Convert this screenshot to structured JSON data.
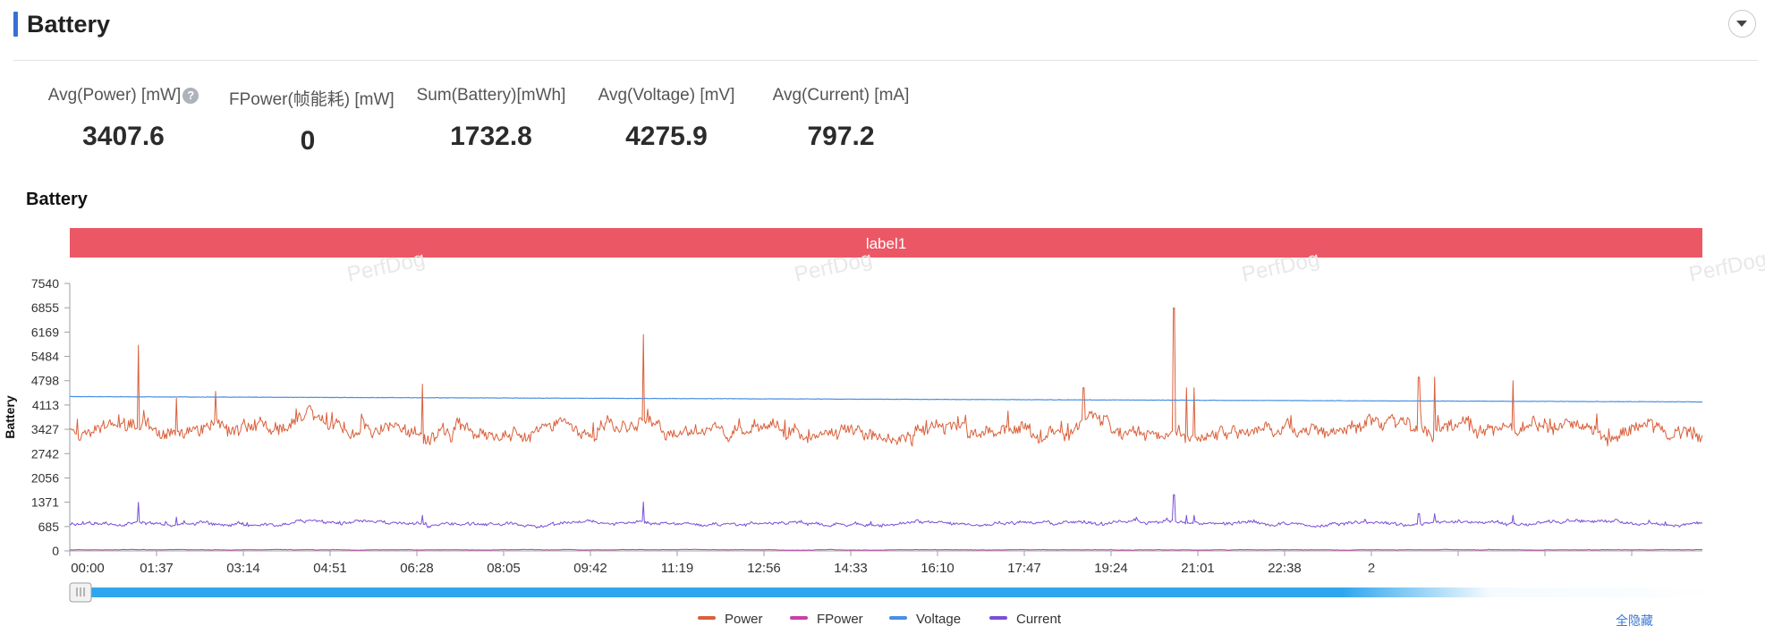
{
  "header": {
    "title": "Battery"
  },
  "metrics": [
    {
      "label": "Avg(Power) [mW]",
      "value": "3407.6"
    },
    {
      "label": "FPower(帧能耗) [mW]",
      "value": "0"
    },
    {
      "label": "Sum(Battery)[mWh]",
      "value": "1732.8"
    },
    {
      "label": "Avg(Voltage) [mV]",
      "value": "4275.9"
    },
    {
      "label": "Avg(Current) [mA]",
      "value": "797.2"
    }
  ],
  "chart_title": "Battery",
  "label_bar": "label1",
  "watermark": "PerfDog",
  "hide_all": "全隐藏",
  "colors": {
    "power": "#d9603b",
    "fpower": "#c940a8",
    "voltage": "#4a8fe3",
    "current": "#7b4fd6",
    "label_bar": "#ec5766",
    "scrollbar": "#2fa6ee",
    "accent": "#3b6fd6"
  },
  "chart_data": {
    "type": "line",
    "ylabel": "Battery",
    "y_ticks": [
      0,
      685,
      1371,
      2056,
      2742,
      3427,
      4113,
      4798,
      5484,
      6169,
      6855,
      7540
    ],
    "ylim": [
      0,
      7540
    ],
    "x_ticks": [
      "00:00",
      "01:37",
      "03:14",
      "04:51",
      "06:28",
      "08:05",
      "09:42",
      "11:19",
      "12:56",
      "14:33",
      "16:10",
      "17:47",
      "19:24",
      "21:01",
      "22:38",
      "2"
    ],
    "xlim_seconds": [
      0,
      1900
    ],
    "series": [
      {
        "name": "Power",
        "color": "#d9603b",
        "baseline": 3400,
        "noise": 300,
        "spikes": [
          [
            80,
            5800
          ],
          [
            124,
            4300
          ],
          [
            170,
            4500
          ],
          [
            410,
            4700
          ],
          [
            668,
            6100
          ],
          [
            1180,
            4600
          ],
          [
            1285,
            6850
          ],
          [
            1300,
            4600
          ],
          [
            1308,
            4600
          ],
          [
            1570,
            4900
          ],
          [
            1588,
            4900
          ],
          [
            1680,
            4800
          ]
        ]
      },
      {
        "name": "FPower",
        "color": "#c940a8",
        "baseline": 30,
        "noise": 8,
        "spikes": []
      },
      {
        "name": "Voltage",
        "color": "#4a8fe3",
        "start": 4350,
        "end": 4200
      },
      {
        "name": "Current",
        "color": "#7b4fd6",
        "baseline": 780,
        "noise": 70,
        "spikes": [
          [
            80,
            1370
          ],
          [
            124,
            950
          ],
          [
            410,
            1000
          ],
          [
            668,
            1380
          ],
          [
            1285,
            1580
          ],
          [
            1300,
            1000
          ],
          [
            1308,
            1000
          ],
          [
            1570,
            1050
          ],
          [
            1588,
            1050
          ],
          [
            1680,
            1000
          ]
        ]
      }
    ],
    "grid": false,
    "legend_position": "bottom-center"
  }
}
